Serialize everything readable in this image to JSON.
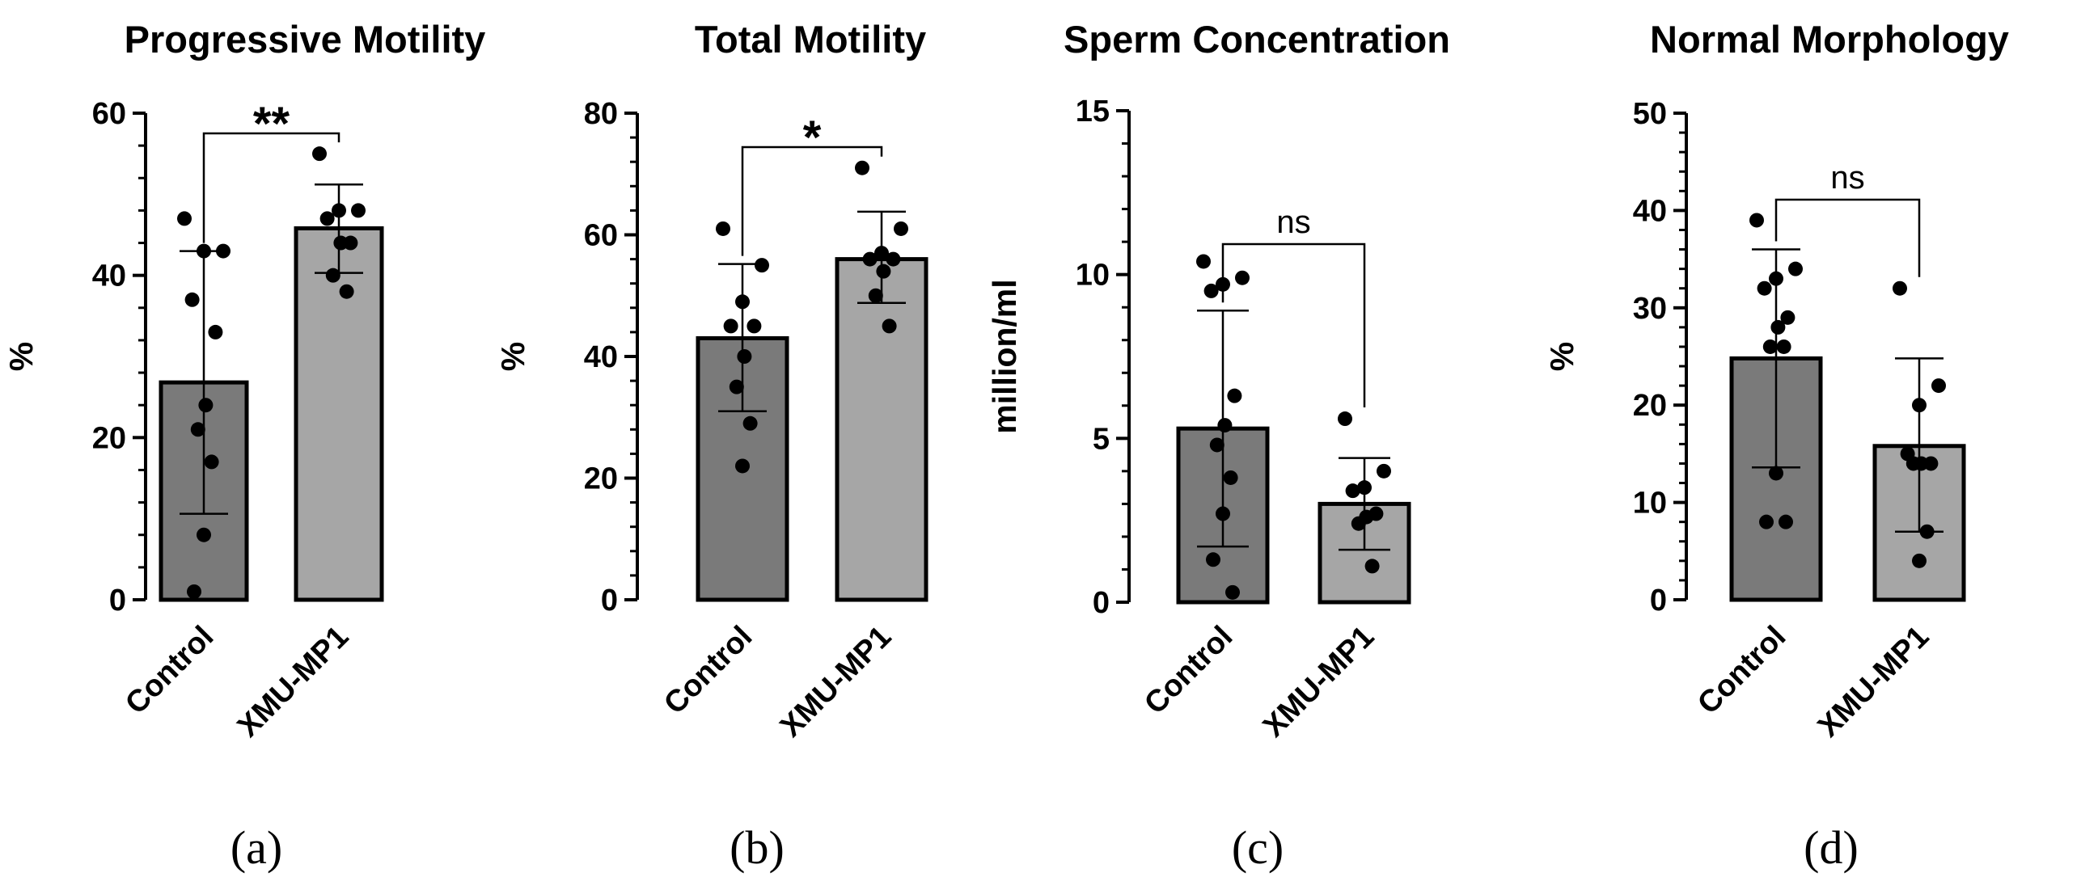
{
  "chart_data": [
    {
      "type": "bar",
      "panel_label": "(a)",
      "title": "Progressive Motility",
      "ylabel": "%",
      "ylim": [
        0,
        60
      ],
      "yticks": [
        0,
        20,
        40,
        60
      ],
      "categories": [
        "Control",
        "XMU-MP1"
      ],
      "series": [
        {
          "name": "Control",
          "mean": 26.8,
          "sd_low": 10.6,
          "sd_high": 43.0,
          "color": "#7a7a7a",
          "points": [
            47,
            43,
            43,
            37,
            33,
            24,
            21,
            17,
            8,
            1
          ]
        },
        {
          "name": "XMU-MP1",
          "mean": 45.8,
          "sd_low": 40.3,
          "sd_high": 51.2,
          "color": "#a6a6a6",
          "points": [
            55,
            48,
            48,
            47,
            44,
            44,
            40,
            38
          ]
        }
      ],
      "significance": "**"
    },
    {
      "type": "bar",
      "panel_label": "(b)",
      "title": "Total Motility",
      "ylabel": "%",
      "ylim": [
        0,
        80
      ],
      "yticks": [
        0,
        20,
        40,
        60,
        80
      ],
      "categories": [
        "Control",
        "XMU-MP1"
      ],
      "series": [
        {
          "name": "Control",
          "mean": 43.0,
          "sd_low": 31.0,
          "sd_high": 55.2,
          "color": "#7a7a7a",
          "points": [
            61,
            55,
            49,
            45,
            45,
            40,
            35,
            29,
            22
          ]
        },
        {
          "name": "XMU-MP1",
          "mean": 56.0,
          "sd_low": 48.8,
          "sd_high": 63.8,
          "color": "#a6a6a6",
          "points": [
            71,
            61,
            57,
            56,
            56,
            54,
            50,
            45
          ]
        }
      ],
      "significance": "*"
    },
    {
      "type": "bar",
      "panel_label": "(c)",
      "title": "Sperm Concentration",
      "ylabel": "million/ml",
      "ylim": [
        0,
        15
      ],
      "yticks": [
        0,
        5,
        10,
        15
      ],
      "categories": [
        "Control",
        "XMU-MP1"
      ],
      "series": [
        {
          "name": "Control",
          "mean": 5.3,
          "sd_low": 1.7,
          "sd_high": 8.9,
          "color": "#7a7a7a",
          "points": [
            10.4,
            9.9,
            9.7,
            9.5,
            6.3,
            5.4,
            4.8,
            3.8,
            2.7,
            1.3,
            0.3
          ]
        },
        {
          "name": "XMU-MP1",
          "mean": 3.0,
          "sd_low": 1.6,
          "sd_high": 4.4,
          "color": "#a6a6a6",
          "points": [
            5.6,
            4.0,
            3.5,
            3.4,
            2.7,
            2.6,
            2.4,
            1.1
          ]
        }
      ],
      "significance": "ns"
    },
    {
      "type": "bar",
      "panel_label": "(d)",
      "title": "Normal Morphology",
      "ylabel": "%",
      "ylim": [
        0,
        50
      ],
      "yticks": [
        0,
        10,
        20,
        30,
        40,
        50
      ],
      "categories": [
        "Control",
        "XMU-MP1"
      ],
      "series": [
        {
          "name": "Control",
          "mean": 24.8,
          "sd_low": 13.6,
          "sd_high": 36.0,
          "color": "#7a7a7a",
          "points": [
            39,
            34,
            33,
            32,
            29,
            28,
            26,
            26,
            13,
            8,
            8
          ]
        },
        {
          "name": "XMU-MP1",
          "mean": 15.8,
          "sd_low": 7.0,
          "sd_high": 24.8,
          "color": "#a6a6a6",
          "points": [
            32,
            22,
            20,
            15,
            14,
            14,
            14,
            7,
            4
          ]
        }
      ],
      "significance": "ns"
    }
  ]
}
